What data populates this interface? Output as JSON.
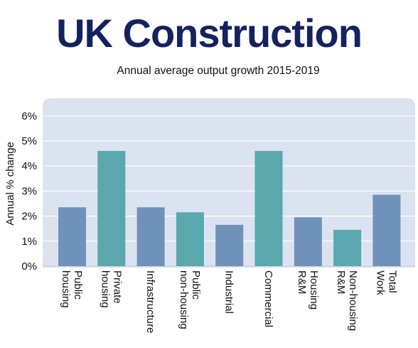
{
  "title": "UK Construction",
  "subtitle": "Annual average output growth 2015-2019",
  "colors": {
    "blue_bar": "#7092ba",
    "teal_bar": "#5aa8ad",
    "plot_bg": "#dbe2f0",
    "title": "#14225f"
  },
  "chart_data": {
    "type": "bar",
    "title": "UK Construction",
    "subtitle": "Annual average output growth 2015-2019",
    "xlabel": "",
    "ylabel": "Annual % change",
    "ylim": [
      0,
      6
    ],
    "yticks": [
      "0%",
      "1%",
      "2%",
      "3%",
      "4%",
      "5%",
      "6%"
    ],
    "categories": [
      [
        "Public",
        "housing"
      ],
      [
        "Private",
        "housing"
      ],
      [
        "Infrastructure"
      ],
      [
        "Public",
        "non-housing"
      ],
      [
        "Industrial"
      ],
      [
        "Commercial"
      ],
      [
        "Housing",
        "R&M"
      ],
      [
        "Non-housing",
        "R&M"
      ],
      [
        "Total",
        "Work"
      ]
    ],
    "values": [
      2.35,
      4.6,
      2.35,
      2.15,
      1.65,
      4.6,
      1.95,
      1.45,
      2.85
    ],
    "bar_colors": [
      "blue",
      "teal",
      "blue",
      "teal",
      "blue",
      "teal",
      "blue",
      "teal",
      "blue"
    ],
    "grid": true,
    "legend": "none"
  }
}
